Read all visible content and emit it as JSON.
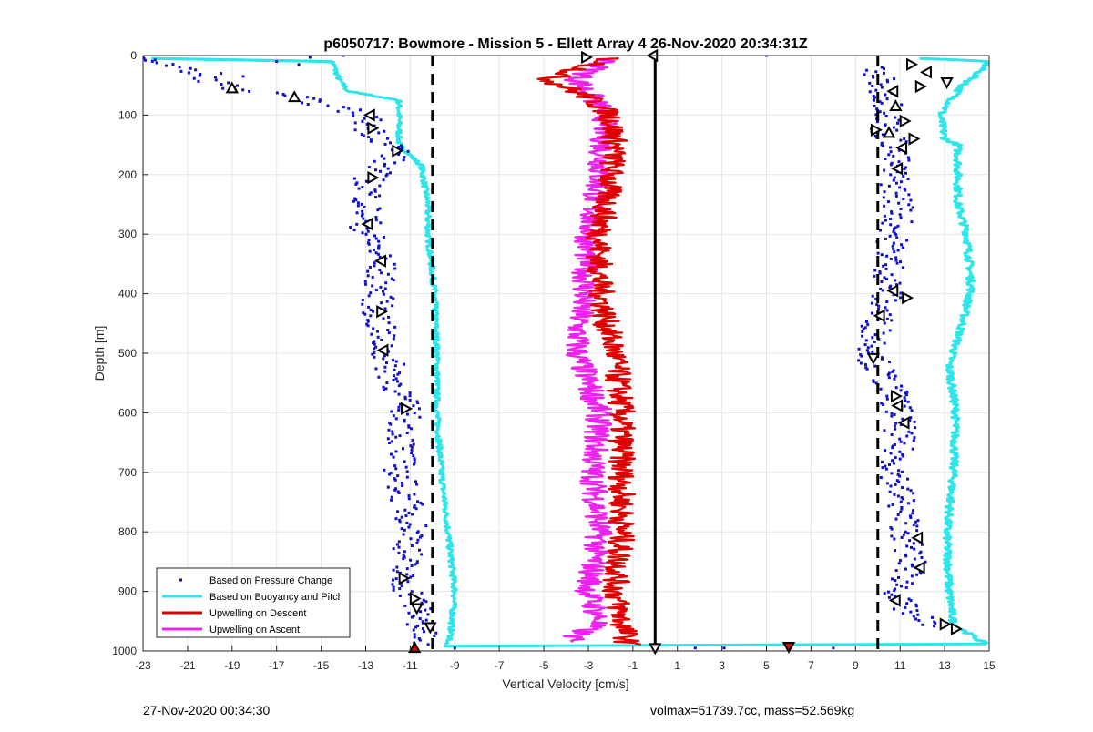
{
  "chart_data": {
    "type": "line",
    "title": "p6050717: Bowmore - Mission 5 - Ellett Array 4 26-Nov-2020 20:34:31Z",
    "xlabel": "Vertical Velocity [cm/s]",
    "ylabel": "Depth [m]",
    "xlim": [
      -23,
      15
    ],
    "ylim": [
      0,
      1000
    ],
    "y_reversed": true,
    "grid": true,
    "x_ticks": [
      -23,
      -21,
      -19,
      -17,
      -15,
      -13,
      -11,
      -9,
      -7,
      -5,
      -3,
      -1,
      1,
      3,
      5,
      7,
      9,
      11,
      13,
      15
    ],
    "y_ticks": [
      0,
      100,
      200,
      300,
      400,
      500,
      600,
      700,
      800,
      900,
      1000
    ],
    "legend_position": "bottom-left",
    "colors": {
      "pressure": "#1010c8",
      "buoyancy": "#2ee6ea",
      "descent": "#e00000",
      "ascent": "#ee22ee",
      "reference": "#000000"
    },
    "reference_lines": [
      {
        "style": "dashed",
        "x": -10
      },
      {
        "style": "dashed",
        "x": 10
      },
      {
        "style": "solid",
        "x": 0
      }
    ],
    "series": [
      {
        "name": "Based on Pressure Change",
        "style": "dots",
        "left": [
          [
            -22.5,
            5
          ],
          [
            -19,
            55
          ],
          [
            -16.2,
            70
          ],
          [
            -13,
            100
          ],
          [
            -12.8,
            125
          ],
          [
            -11.5,
            160
          ],
          [
            -12.8,
            205
          ],
          [
            -13,
            290
          ],
          [
            -12.3,
            345
          ],
          [
            -12.5,
            430
          ],
          [
            -12.2,
            495
          ],
          [
            -11.2,
            595
          ],
          [
            -11.5,
            700
          ],
          [
            -10.8,
            800
          ],
          [
            -11.5,
            880
          ],
          [
            -10.8,
            910
          ],
          [
            -10.5,
            960
          ],
          [
            -10.5,
            990
          ]
        ],
        "right": [
          [
            9.8,
            20
          ],
          [
            10.3,
            60
          ],
          [
            10.6,
            90
          ],
          [
            10.3,
            125
          ],
          [
            10.8,
            150
          ],
          [
            10.7,
            195
          ],
          [
            11,
            260
          ],
          [
            10.6,
            320
          ],
          [
            10.5,
            390
          ],
          [
            10,
            445
          ],
          [
            9.8,
            510
          ],
          [
            10.8,
            575
          ],
          [
            11,
            620
          ],
          [
            10.8,
            700
          ],
          [
            11.2,
            780
          ],
          [
            11.5,
            860
          ],
          [
            10.8,
            915
          ],
          [
            12.3,
            960
          ]
        ]
      },
      {
        "name": "Based on Buoyancy and Pitch",
        "style": "line",
        "left": [
          [
            -22.5,
            5
          ],
          [
            -14.5,
            10
          ],
          [
            -14.2,
            40
          ],
          [
            -13.8,
            60
          ],
          [
            -11.5,
            75
          ],
          [
            -11.5,
            150
          ],
          [
            -10.5,
            185
          ],
          [
            -10.2,
            250
          ],
          [
            -10.2,
            300
          ],
          [
            -9.9,
            400
          ],
          [
            -9.8,
            500
          ],
          [
            -9.8,
            600
          ],
          [
            -9.6,
            700
          ],
          [
            -9.3,
            800
          ],
          [
            -9.0,
            900
          ],
          [
            -9.2,
            980
          ],
          [
            -9.5,
            990
          ]
        ],
        "right": [
          [
            12,
            5
          ],
          [
            15,
            10
          ],
          [
            14.2,
            40
          ],
          [
            13.8,
            50
          ],
          [
            12.8,
            100
          ],
          [
            13,
            140
          ],
          [
            13.6,
            150
          ],
          [
            13.6,
            250
          ],
          [
            14,
            300
          ],
          [
            14.2,
            390
          ],
          [
            13.8,
            450
          ],
          [
            13.2,
            520
          ],
          [
            13.5,
            600
          ],
          [
            13.4,
            700
          ],
          [
            13.1,
            800
          ],
          [
            13.2,
            900
          ],
          [
            13.4,
            955
          ],
          [
            14.9,
            990
          ]
        ]
      },
      {
        "name": "Upwelling on Descent",
        "style": "line",
        "points": [
          [
            -2,
            5
          ],
          [
            -4.8,
            40
          ],
          [
            -3,
            70
          ],
          [
            -2,
            100
          ],
          [
            -1.8,
            150
          ],
          [
            -2.2,
            250
          ],
          [
            -2.5,
            300
          ],
          [
            -2.5,
            380
          ],
          [
            -2.2,
            450
          ],
          [
            -1.8,
            500
          ],
          [
            -1.5,
            600
          ],
          [
            -1.5,
            700
          ],
          [
            -1.5,
            800
          ],
          [
            -1.8,
            900
          ],
          [
            -1.5,
            950
          ],
          [
            -1.2,
            990
          ]
        ]
      },
      {
        "name": "Upwelling on Ascent",
        "style": "line",
        "points": [
          [
            -2,
            5
          ],
          [
            -3.5,
            40
          ],
          [
            -2.2,
            100
          ],
          [
            -2.5,
            200
          ],
          [
            -3,
            300
          ],
          [
            -3.2,
            400
          ],
          [
            -3.5,
            460
          ],
          [
            -3.5,
            500
          ],
          [
            -2.5,
            600
          ],
          [
            -2.8,
            700
          ],
          [
            -2.5,
            800
          ],
          [
            -3,
            900
          ],
          [
            -2.5,
            950
          ],
          [
            -4,
            985
          ]
        ]
      }
    ],
    "markers": [
      {
        "x": -19.0,
        "y": 55,
        "dir": "up"
      },
      {
        "x": -16.2,
        "y": 70,
        "dir": "up"
      },
      {
        "x": -12.8,
        "y": 100,
        "dir": "left"
      },
      {
        "x": -12.7,
        "y": 122,
        "dir": "right"
      },
      {
        "x": -11.6,
        "y": 160,
        "dir": "right"
      },
      {
        "x": -12.7,
        "y": 205,
        "dir": "right"
      },
      {
        "x": -12.9,
        "y": 283,
        "dir": "left"
      },
      {
        "x": -12.3,
        "y": 345,
        "dir": "left"
      },
      {
        "x": -12.3,
        "y": 430,
        "dir": "right"
      },
      {
        "x": -12.2,
        "y": 495,
        "dir": "left"
      },
      {
        "x": -11.2,
        "y": 593,
        "dir": "right"
      },
      {
        "x": -11.3,
        "y": 878,
        "dir": "right"
      },
      {
        "x": -10.8,
        "y": 912,
        "dir": "right"
      },
      {
        "x": -10.7,
        "y": 928,
        "dir": "down"
      },
      {
        "x": -10.1,
        "y": 960,
        "dir": "down"
      },
      {
        "x": -10.8,
        "y": 995,
        "dir": "up",
        "fill": "#e00000"
      },
      {
        "x": -3.1,
        "y": 3,
        "dir": "right"
      },
      {
        "x": -0.1,
        "y": 0,
        "dir": "left"
      },
      {
        "x": 0,
        "y": 995,
        "dir": "down"
      },
      {
        "x": 6,
        "y": 993,
        "dir": "down",
        "fill": "#e00000"
      },
      {
        "x": 11.5,
        "y": 15,
        "dir": "right"
      },
      {
        "x": 12.2,
        "y": 28,
        "dir": "left"
      },
      {
        "x": 13.1,
        "y": 45,
        "dir": "down"
      },
      {
        "x": 11.9,
        "y": 52,
        "dir": "right"
      },
      {
        "x": 10.7,
        "y": 60,
        "dir": "left"
      },
      {
        "x": 10.8,
        "y": 85,
        "dir": "up"
      },
      {
        "x": 11.2,
        "y": 110,
        "dir": "right"
      },
      {
        "x": 9.9,
        "y": 125,
        "dir": "right"
      },
      {
        "x": 10.5,
        "y": 130,
        "dir": "up"
      },
      {
        "x": 11.6,
        "y": 140,
        "dir": "right"
      },
      {
        "x": 11.1,
        "y": 155,
        "dir": "left"
      },
      {
        "x": 10.9,
        "y": 190,
        "dir": "left"
      },
      {
        "x": 10.7,
        "y": 395,
        "dir": "left"
      },
      {
        "x": 11.3,
        "y": 407,
        "dir": "right"
      },
      {
        "x": 10.1,
        "y": 437,
        "dir": "left"
      },
      {
        "x": 9.8,
        "y": 508,
        "dir": "down"
      },
      {
        "x": 10.8,
        "y": 572,
        "dir": "right"
      },
      {
        "x": 10.9,
        "y": 588,
        "dir": "left"
      },
      {
        "x": 11.2,
        "y": 617,
        "dir": "left"
      },
      {
        "x": 11.8,
        "y": 810,
        "dir": "left"
      },
      {
        "x": 11.9,
        "y": 860,
        "dir": "left"
      },
      {
        "x": 10.8,
        "y": 915,
        "dir": "left"
      },
      {
        "x": 13.0,
        "y": 955,
        "dir": "right"
      },
      {
        "x": 13.5,
        "y": 963,
        "dir": "right"
      }
    ]
  },
  "footer": {
    "left": "27-Nov-2020 00:34:30",
    "right": "volmax=51739.7cc, mass=52.569kg"
  }
}
